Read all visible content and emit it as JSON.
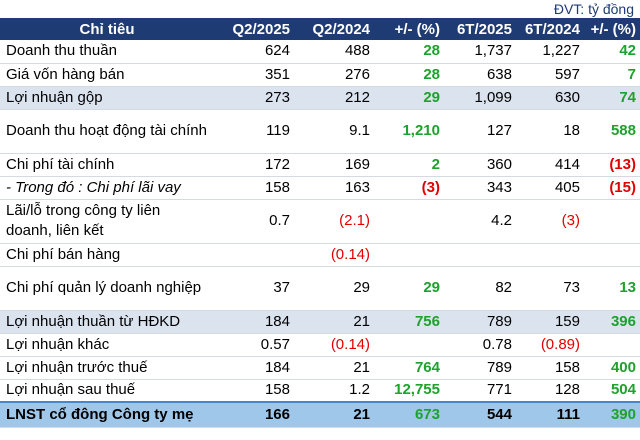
{
  "unit_label": "ĐVT: tỷ đồng",
  "columns": [
    "Chỉ tiêu",
    "Q2/2025",
    "Q2/2024",
    "+/- (%)",
    "6T/2025",
    "6T/2024",
    "+/- (%)"
  ],
  "rows": [
    {
      "label": "Doanh thu thuần",
      "q2_2025": "624",
      "q2_2024": "488",
      "q_chg": "28",
      "h1_2025": "1,737",
      "h1_2024": "1,227",
      "h_chg": "42"
    },
    {
      "label": "Giá vốn hàng bán",
      "q2_2025": "351",
      "q2_2024": "276",
      "q_chg": "28",
      "h1_2025": "638",
      "h1_2024": "597",
      "h_chg": "7"
    },
    {
      "label": "Lợi nhuận gộp",
      "q2_2025": "273",
      "q2_2024": "212",
      "q_chg": "29",
      "h1_2025": "1,099",
      "h1_2024": "630",
      "h_chg": "74"
    },
    {
      "label": "Doanh thu hoạt động tài chính",
      "q2_2025": "119",
      "q2_2024": "9.1",
      "q_chg": "1,210",
      "h1_2025": "127",
      "h1_2024": "18",
      "h_chg": "588"
    },
    {
      "label": "Chi phí tài chính",
      "q2_2025": "172",
      "q2_2024": "169",
      "q_chg": "2",
      "h1_2025": "360",
      "h1_2024": "414",
      "h_chg": "(13)"
    },
    {
      "label": "- Trong đó : Chi phí lãi vay",
      "q2_2025": "158",
      "q2_2024": "163",
      "q_chg": "(3)",
      "h1_2025": "343",
      "h1_2024": "405",
      "h_chg": "(15)"
    },
    {
      "label": "Lãi/lỗ trong công ty liên doanh, liên kết",
      "q2_2025": "0.7",
      "q2_2024": "(2.1)",
      "q_chg": "",
      "h1_2025": "4.2",
      "h1_2024": "(3)",
      "h_chg": ""
    },
    {
      "label": "Chi phí bán hàng",
      "q2_2025": "",
      "q2_2024": "(0.14)",
      "q_chg": "",
      "h1_2025": "",
      "h1_2024": "",
      "h_chg": ""
    },
    {
      "label": "Chi phí quản lý doanh nghiệp",
      "q2_2025": "37",
      "q2_2024": "29",
      "q_chg": "29",
      "h1_2025": "82",
      "h1_2024": "73",
      "h_chg": "13"
    },
    {
      "label": "Lợi nhuận thuần từ HĐKD",
      "q2_2025": "184",
      "q2_2024": "21",
      "q_chg": "756",
      "h1_2025": "789",
      "h1_2024": "159",
      "h_chg": "396"
    },
    {
      "label": "Lợi nhuận khác",
      "q2_2025": "0.57",
      "q2_2024": "(0.14)",
      "q_chg": "",
      "h1_2025": "0.78",
      "h1_2024": "(0.89)",
      "h_chg": ""
    },
    {
      "label": "Lợi nhuận trước thuế",
      "q2_2025": "184",
      "q2_2024": "21",
      "q_chg": "764",
      "h1_2025": "789",
      "h1_2024": "158",
      "h_chg": "400"
    },
    {
      "label": "Lợi nhuận sau thuế",
      "q2_2025": "158",
      "q2_2024": "1.2",
      "q_chg": "12,755",
      "h1_2025": "771",
      "h1_2024": "128",
      "h_chg": "504"
    },
    {
      "label": "LNST cổ đông Công ty mẹ",
      "q2_2025": "166",
      "q2_2024": "21",
      "q_chg": "673",
      "h1_2025": "544",
      "h1_2024": "111",
      "h_chg": "390"
    }
  ],
  "colors": {
    "header_bg": "#1f3b73",
    "band_bg": "#dbe3ef",
    "total_bg": "#9fc7ea",
    "positive": "#1fa12e",
    "negative": "#e00000"
  }
}
